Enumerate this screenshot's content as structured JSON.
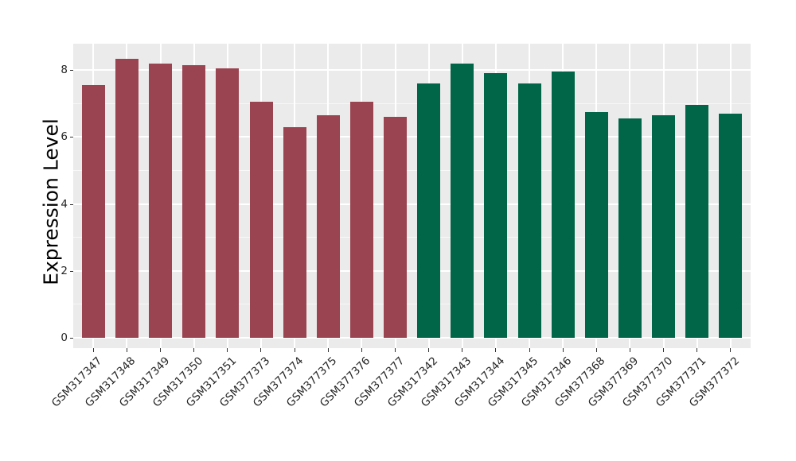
{
  "chart_data": {
    "type": "bar",
    "title": "",
    "xlabel": "",
    "ylabel": "Expression Level",
    "ylim": [
      0,
      8.8
    ],
    "yticks": [
      0,
      2,
      4,
      6,
      8
    ],
    "y_minor_gridlines": [
      1,
      3,
      5,
      7
    ],
    "grid": "white major and minor horizontal lines plus vertical line per category on light-gray panel",
    "legend": "none",
    "x_tick_rotation_deg": 45,
    "style": {
      "panel_bg": "#EBEBEB",
      "gridline_color": "#FFFFFF",
      "tick_color": "#333333",
      "text_color": "#262626",
      "bar_color_left_group": "#9B4451",
      "bar_color_right_group": "#006647"
    },
    "bars": [
      {
        "label": "GSM317347",
        "value": 7.55,
        "color": "#9B4451"
      },
      {
        "label": "GSM317348",
        "value": 8.35,
        "color": "#9B4451"
      },
      {
        "label": "GSM317349",
        "value": 8.2,
        "color": "#9B4451"
      },
      {
        "label": "GSM317350",
        "value": 8.15,
        "color": "#9B4451"
      },
      {
        "label": "GSM317351",
        "value": 8.05,
        "color": "#9B4451"
      },
      {
        "label": "GSM377373",
        "value": 7.05,
        "color": "#9B4451"
      },
      {
        "label": "GSM377374",
        "value": 6.3,
        "color": "#9B4451"
      },
      {
        "label": "GSM377375",
        "value": 6.65,
        "color": "#9B4451"
      },
      {
        "label": "GSM377376",
        "value": 7.05,
        "color": "#9B4451"
      },
      {
        "label": "GSM377377",
        "value": 6.6,
        "color": "#9B4451"
      },
      {
        "label": "GSM317342",
        "value": 7.6,
        "color": "#006647"
      },
      {
        "label": "GSM317343",
        "value": 8.2,
        "color": "#006647"
      },
      {
        "label": "GSM317344",
        "value": 7.9,
        "color": "#006647"
      },
      {
        "label": "GSM317345",
        "value": 7.6,
        "color": "#006647"
      },
      {
        "label": "GSM317346",
        "value": 7.95,
        "color": "#006647"
      },
      {
        "label": "GSM377368",
        "value": 6.75,
        "color": "#006647"
      },
      {
        "label": "GSM377369",
        "value": 6.55,
        "color": "#006647"
      },
      {
        "label": "GSM377370",
        "value": 6.65,
        "color": "#006647"
      },
      {
        "label": "GSM377371",
        "value": 6.95,
        "color": "#006647"
      },
      {
        "label": "GSM377372",
        "value": 6.7,
        "color": "#006647"
      }
    ]
  }
}
